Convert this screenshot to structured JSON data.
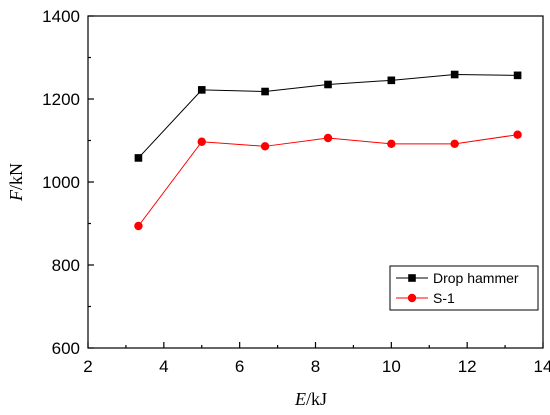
{
  "chart_data": {
    "type": "line",
    "xlabel": {
      "italic": "E",
      "rest": "/kJ"
    },
    "ylabel": {
      "italic": "F",
      "rest": "/kN"
    },
    "xlim": [
      2,
      14
    ],
    "ylim": [
      600,
      1400
    ],
    "xticks": [
      2,
      4,
      6,
      8,
      10,
      12,
      14
    ],
    "yticks": [
      600,
      800,
      1000,
      1200,
      1400
    ],
    "grid": false,
    "legend_position": "bottom-right",
    "series": [
      {
        "name": "Drop hammer",
        "color": "#000000",
        "marker": "square",
        "x": [
          3.33,
          5.0,
          6.67,
          8.33,
          10.0,
          11.67,
          13.33
        ],
        "y": [
          1058,
          1222,
          1218,
          1235,
          1245,
          1259,
          1257
        ]
      },
      {
        "name": "S-1",
        "color": "#ff0000",
        "marker": "circle",
        "x": [
          3.33,
          5.0,
          6.67,
          8.33,
          10.0,
          11.67,
          13.33
        ],
        "y": [
          894,
          1097,
          1086,
          1106,
          1092,
          1092,
          1114
        ]
      }
    ]
  }
}
